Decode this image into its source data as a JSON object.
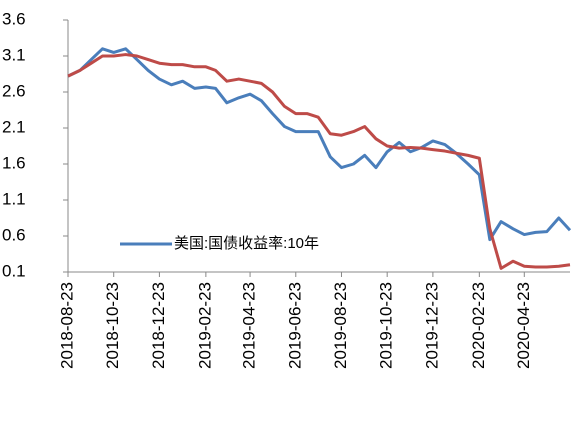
{
  "chart_data": {
    "type": "line",
    "x": [
      "2018-08-23",
      "2018-09-08",
      "2018-09-23",
      "2018-10-08",
      "2018-10-23",
      "2018-11-08",
      "2018-11-23",
      "2018-12-08",
      "2018-12-23",
      "2019-01-08",
      "2019-01-23",
      "2019-02-08",
      "2019-02-23",
      "2019-03-08",
      "2019-03-23",
      "2019-04-08",
      "2019-04-23",
      "2019-05-08",
      "2019-05-23",
      "2019-06-08",
      "2019-06-23",
      "2019-07-08",
      "2019-07-23",
      "2019-08-08",
      "2019-08-23",
      "2019-09-08",
      "2019-09-23",
      "2019-10-08",
      "2019-10-23",
      "2019-11-08",
      "2019-11-23",
      "2019-12-08",
      "2019-12-23",
      "2020-01-08",
      "2020-01-23",
      "2020-02-08",
      "2020-02-23",
      "2020-03-08",
      "2020-03-23",
      "2020-04-08",
      "2020-04-23",
      "2020-05-08",
      "2020-05-23",
      "2020-06-08",
      "2020-06-23"
    ],
    "series": [
      {
        "name": "美国:国债收益率:10年",
        "color": "#4a7ebb",
        "values": [
          2.82,
          2.9,
          3.05,
          3.2,
          3.15,
          3.2,
          3.05,
          2.9,
          2.78,
          2.7,
          2.75,
          2.65,
          2.67,
          2.65,
          2.45,
          2.52,
          2.57,
          2.48,
          2.3,
          2.12,
          2.05,
          2.05,
          2.05,
          1.7,
          1.55,
          1.6,
          1.72,
          1.55,
          1.77,
          1.9,
          1.77,
          1.83,
          1.92,
          1.87,
          1.75,
          1.6,
          1.45,
          0.55,
          0.8,
          0.7,
          0.62,
          0.65,
          0.66,
          0.85,
          0.68
        ]
      },
      {
        "color": "#be4b48",
        "values": [
          2.82,
          2.9,
          3.0,
          3.1,
          3.1,
          3.12,
          3.1,
          3.05,
          3.0,
          2.98,
          2.98,
          2.95,
          2.95,
          2.9,
          2.75,
          2.78,
          2.75,
          2.72,
          2.6,
          2.4,
          2.3,
          2.3,
          2.25,
          2.02,
          2.0,
          2.05,
          2.12,
          1.95,
          1.85,
          1.82,
          1.83,
          1.82,
          1.8,
          1.78,
          1.75,
          1.72,
          1.68,
          0.7,
          0.15,
          0.25,
          0.18,
          0.17,
          0.17,
          0.18,
          0.2
        ]
      }
    ],
    "xlim": [
      "2018-08-23",
      "2020-06-23"
    ],
    "xticks": [
      "2018-08-23",
      "2018-10-23",
      "2018-12-23",
      "2019-02-23",
      "2019-04-23",
      "2019-06-23",
      "2019-08-23",
      "2019-10-23",
      "2019-12-23",
      "2020-02-23",
      "2020-04-23"
    ],
    "ylim": [
      0.1,
      3.6
    ],
    "yticks": [
      0.1,
      0.6,
      1.1,
      1.6,
      2.1,
      2.6,
      3.1,
      3.6
    ],
    "grid": false
  }
}
